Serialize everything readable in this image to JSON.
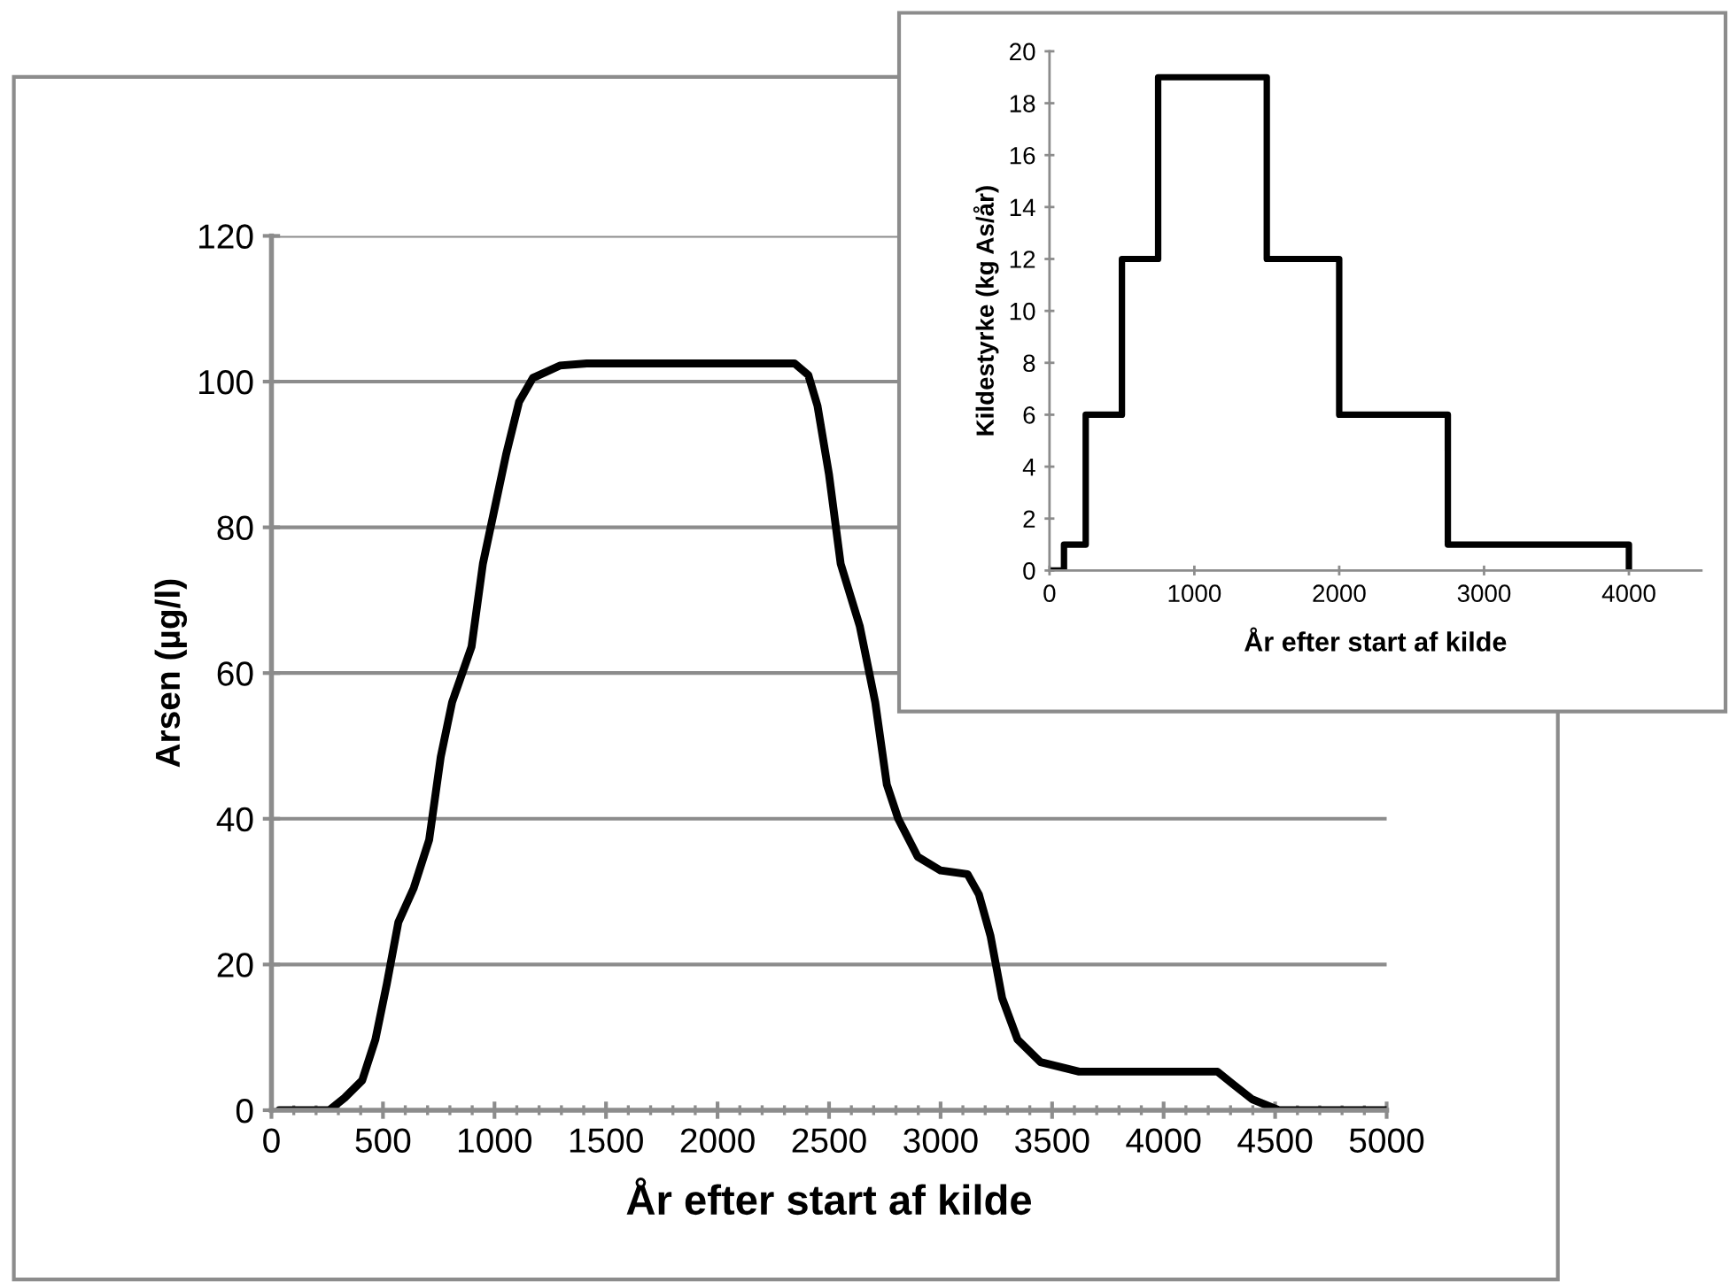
{
  "chart_data": [
    {
      "type": "line",
      "xlabel": "År efter start af kilde",
      "ylabel": "Arsen (µg/l)",
      "xlim": [
        0,
        5000
      ],
      "xticks": [
        0,
        500,
        1000,
        1500,
        2000,
        2500,
        3000,
        3500,
        4000,
        4500,
        5000
      ],
      "ylim": [
        0,
        120
      ],
      "yticks": [
        0,
        20,
        40,
        60,
        80,
        100,
        120
      ],
      "grid": "y",
      "marker": "none",
      "line_style": "solid",
      "series": [
        {
          "color": "#000000",
          "x": [
            34,
            259,
            328,
            407,
            466,
            517,
            569,
            638,
            707,
            759,
            810,
            897,
            948,
            1000,
            1052,
            1110,
            1172,
            1293,
            1414,
            2345,
            2407,
            2448,
            2500,
            2552,
            2638,
            2707,
            2759,
            2810,
            2897,
            3000,
            3121,
            3172,
            3224,
            3276,
            3345,
            3448,
            3621,
            4241,
            4310,
            4397,
            4517,
            5000
          ],
          "values": [
            0,
            0,
            1.7,
            4.1,
            9.7,
            17.3,
            25.8,
            30.5,
            37.1,
            48.5,
            56,
            63.6,
            75,
            82.5,
            90,
            97.2,
            100.5,
            102.2,
            102.5,
            102.5,
            100.9,
            96.7,
            87.2,
            75,
            66.4,
            56,
            44.7,
            40,
            34.8,
            32.9,
            32.4,
            29.6,
            23.9,
            15.4,
            9.7,
            6.6,
            5.3,
            5.3,
            3.6,
            1.5,
            0,
            0
          ]
        }
      ]
    },
    {
      "type": "step",
      "xlabel": "År efter start af kilde",
      "ylabel": "Kildestyrke (kg As/år)",
      "xlim": [
        0,
        4500
      ],
      "xticks": [
        0,
        1000,
        2000,
        3000,
        4000
      ],
      "ylim": [
        0,
        20
      ],
      "yticks": [
        0,
        2,
        4,
        6,
        8,
        10,
        12,
        14,
        16,
        18,
        20
      ],
      "grid": false,
      "marker": "none",
      "line_style": "solid",
      "series": [
        {
          "color": "#000000",
          "x": [
            0,
            100,
            250,
            500,
            750,
            1500,
            2000,
            2750,
            4000
          ],
          "values": [
            0,
            1,
            6,
            12,
            19,
            12,
            6,
            1,
            0
          ]
        }
      ]
    }
  ]
}
